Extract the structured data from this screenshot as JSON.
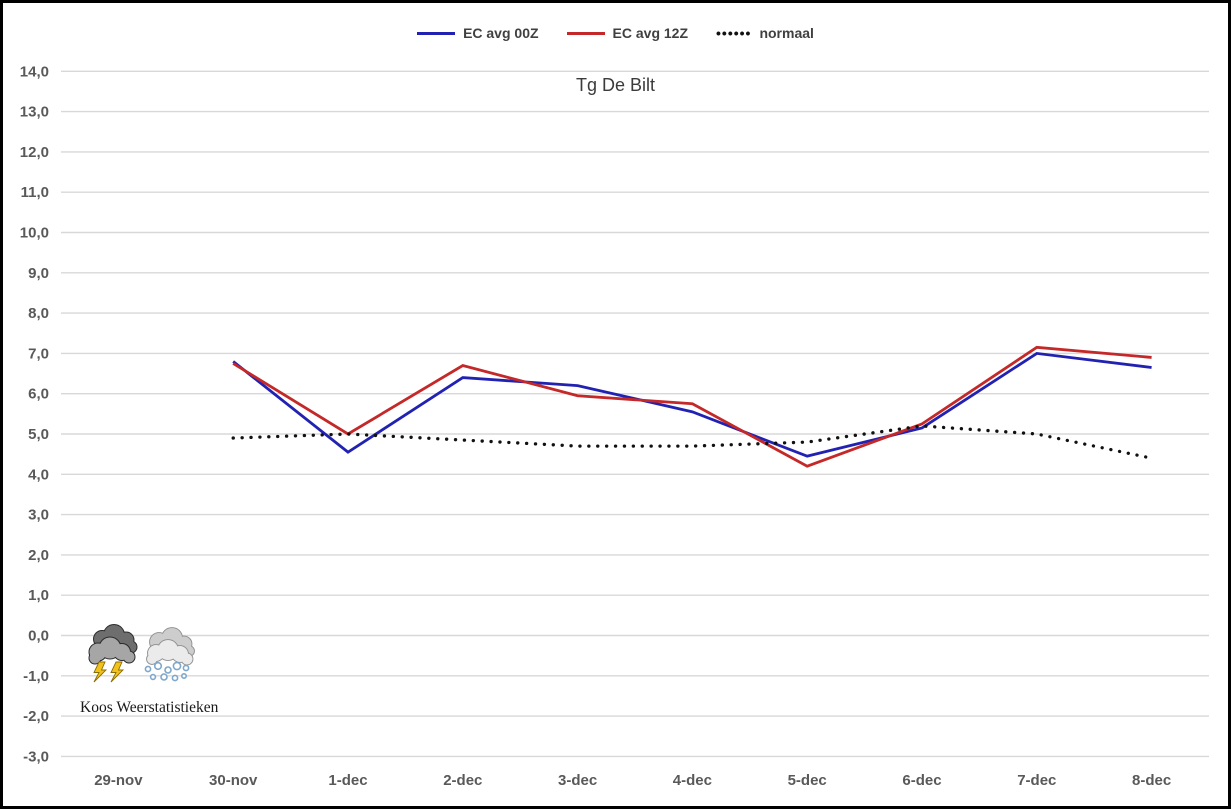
{
  "title": "Tg De Bilt",
  "watermark": "Koos Weerstatistieken",
  "icons": [
    "thunderstorm-icon",
    "snow-icon"
  ],
  "colors": {
    "background": "#ffffff",
    "frame_border": "#000000",
    "gridline": "#d8d8d8",
    "tick_label": "#595959",
    "legend_text": "#404040",
    "title_text": "#3b3b3b"
  },
  "chart_data": {
    "type": "line",
    "title": "Tg De Bilt",
    "xlabel": "",
    "ylabel": "",
    "ylim": [
      -3.0,
      14.0
    ],
    "y_step": 1.0,
    "grid": "horizontal",
    "legend_position": "top-center",
    "gridline_color": "#d8d8d8",
    "categories": [
      "29-nov",
      "30-nov",
      "1-dec",
      "2-dec",
      "3-dec",
      "4-dec",
      "5-dec",
      "6-dec",
      "7-dec",
      "8-dec"
    ],
    "y_ticks": [
      {
        "label": "14,0",
        "value": 14
      },
      {
        "label": "13,0",
        "value": 13
      },
      {
        "label": "12,0",
        "value": 12
      },
      {
        "label": "11,0",
        "value": 11
      },
      {
        "label": "10,0",
        "value": 10
      },
      {
        "label": "9,0",
        "value": 9
      },
      {
        "label": "8,0",
        "value": 8
      },
      {
        "label": "7,0",
        "value": 7
      },
      {
        "label": "6,0",
        "value": 6
      },
      {
        "label": "5,0",
        "value": 5
      },
      {
        "label": "4,0",
        "value": 4
      },
      {
        "label": "3,0",
        "value": 3
      },
      {
        "label": "2,0",
        "value": 2
      },
      {
        "label": "1,0",
        "value": 1
      },
      {
        "label": "0,0",
        "value": 0
      },
      {
        "label": "-1,0",
        "value": -1
      },
      {
        "label": "-2,0",
        "value": -2
      },
      {
        "label": "-3,0",
        "value": -3
      }
    ],
    "series": [
      {
        "name": "EC avg 00Z",
        "color": "#2222b2",
        "line_style": "solid",
        "start_index": 1,
        "values": [
          6.8,
          4.55,
          6.4,
          6.2,
          5.55,
          4.45,
          5.15,
          7.0,
          6.65
        ]
      },
      {
        "name": "EC avg 12Z",
        "color": "#c42828",
        "line_style": "solid",
        "start_index": 1,
        "values": [
          6.75,
          5.0,
          6.7,
          5.95,
          5.75,
          4.2,
          5.25,
          7.15,
          6.9
        ]
      },
      {
        "name": "normaal",
        "color": "#111111",
        "line_style": "dotted",
        "start_index": 1,
        "values": [
          4.9,
          5.0,
          4.85,
          4.7,
          4.7,
          4.8,
          5.2,
          5.0,
          4.4
        ]
      }
    ]
  }
}
